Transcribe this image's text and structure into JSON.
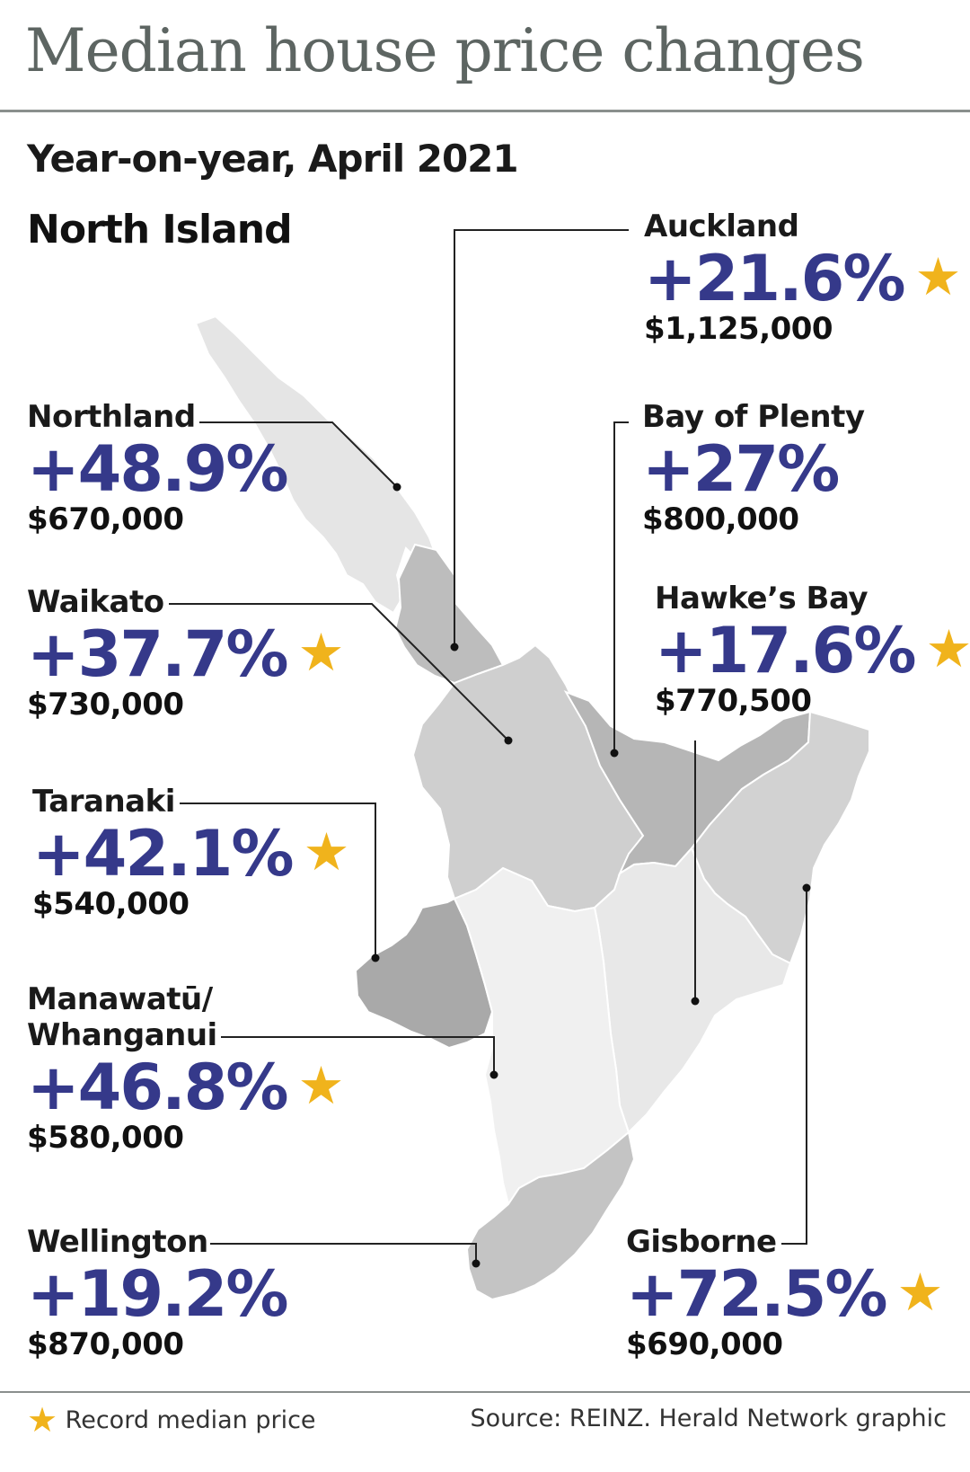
{
  "title": "Median house price changes",
  "subtitle": "Year-on-year, April 2021",
  "island": "North Island",
  "colors": {
    "title": "#5d6562",
    "percent": "#35398a",
    "star": "#f0b31c"
  },
  "regions": {
    "auckland": {
      "name": "Auckland",
      "change": "+21.6%",
      "price": "$1,125,000",
      "record": true
    },
    "bop": {
      "name": "Bay of Plenty",
      "change": "+27%",
      "price": "$800,000",
      "record": false
    },
    "hawkes": {
      "name": "Hawke’s Bay",
      "change": "+17.6%",
      "price": "$770,500",
      "record": true
    },
    "northland": {
      "name": "Northland",
      "change": "+48.9%",
      "price": "$670,000",
      "record": false
    },
    "waikato": {
      "name": "Waikato",
      "change": "+37.7%",
      "price": "$730,000",
      "record": true
    },
    "taranaki": {
      "name": "Taranaki",
      "change": "+42.1%",
      "price": "$540,000",
      "record": true
    },
    "manawatu": {
      "name_line1": "Manawatū/",
      "name_line2": "Whanganui",
      "change": "+46.8%",
      "price": "$580,000",
      "record": true
    },
    "wellington": {
      "name": "Wellington",
      "change": "+19.2%",
      "price": "$870,000",
      "record": false
    },
    "gisborne": {
      "name": "Gisborne",
      "change": "+72.5%",
      "price": "$690,000",
      "record": true
    }
  },
  "legend": {
    "star_icon": "star-icon",
    "text": "Record median price"
  },
  "source": "Source: REINZ.  Herald Network graphic"
}
